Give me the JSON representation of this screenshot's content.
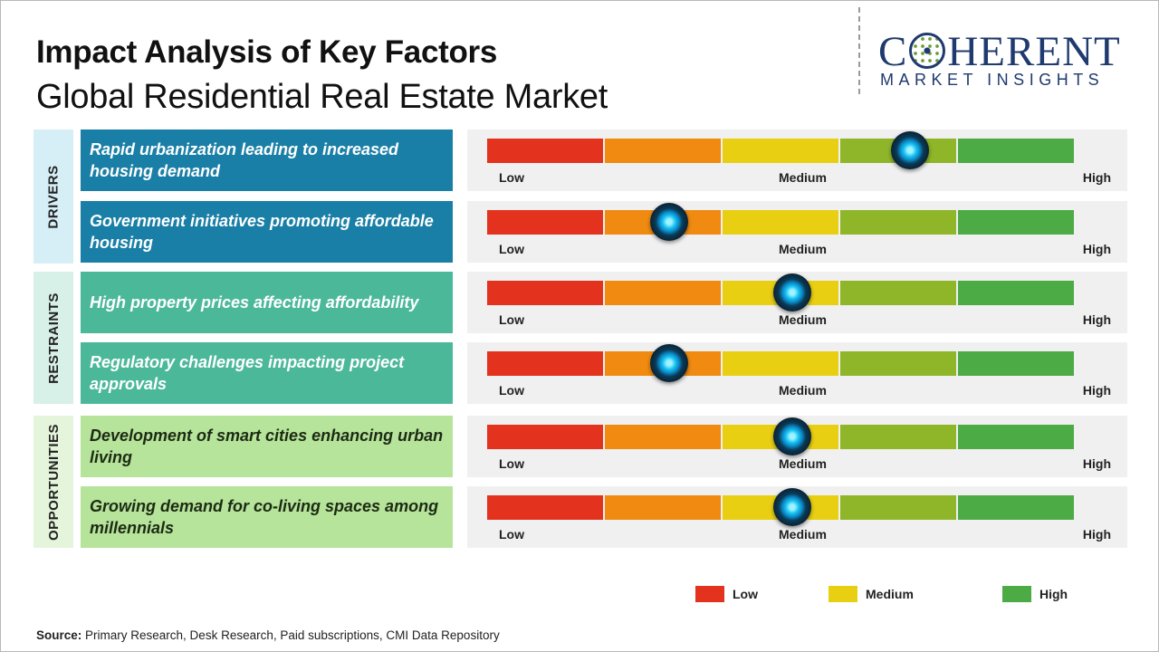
{
  "header": {
    "title": "Impact Analysis of Key Factors",
    "subtitle": "Global Residential Real Estate Market"
  },
  "logo": {
    "name_left": "C",
    "name_right": "HERENT",
    "tagline": "MARKET INSIGHTS"
  },
  "categories": {
    "drivers": "DRIVERS",
    "restraints": "RESTRAINTS",
    "opportunities": "OPPORTUNITIES"
  },
  "scale_labels": {
    "low": "Low",
    "medium": "Medium",
    "high": "High"
  },
  "factors": [
    {
      "text": "Rapid urbanization leading to increased housing demand",
      "impact_level": 0.72
    },
    {
      "text": "Government initiatives promoting affordable housing",
      "impact_level": 0.31
    },
    {
      "text": "High property prices affecting affordability",
      "impact_level": 0.52
    },
    {
      "text": "Regulatory challenges impacting project approvals",
      "impact_level": 0.31
    },
    {
      "text": "Development of smart cities enhancing urban living",
      "impact_level": 0.52
    },
    {
      "text": "Growing demand for co-living spaces among millennials",
      "impact_level": 0.52
    }
  ],
  "colors": {
    "low": "#e3321e",
    "low_medium": "#f08a10",
    "medium": "#e9cf12",
    "medium_high": "#8fb529",
    "high": "#4cab44"
  },
  "legend": {
    "low": "Low",
    "medium": "Medium",
    "high": "High"
  },
  "footer": {
    "source_label": "Source:",
    "source_text": "Primary Research, Desk Research, Paid subscriptions, CMI Data Repository"
  }
}
